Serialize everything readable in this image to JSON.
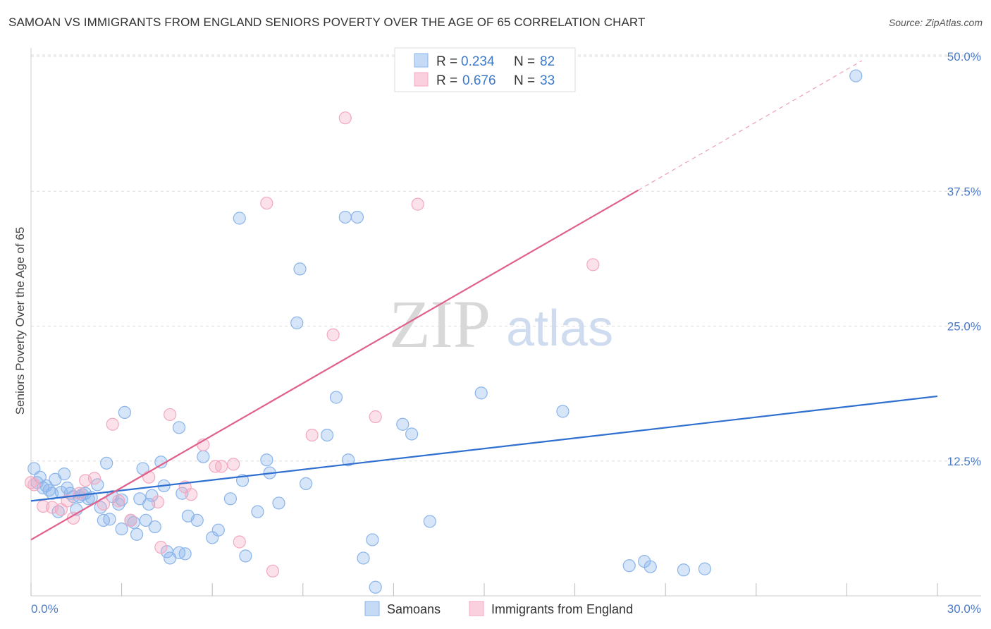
{
  "title": "SAMOAN VS IMMIGRANTS FROM ENGLAND SENIORS POVERTY OVER THE AGE OF 65 CORRELATION CHART",
  "source": "Source: ZipAtlas.com",
  "watermark": {
    "zip": "ZIP",
    "atlas": "atlas"
  },
  "legend": {
    "items": [
      {
        "r_label": "R =",
        "r_value": "0.234",
        "n_label": "N =",
        "n_value": "82"
      },
      {
        "r_label": "R =",
        "r_value": "0.676",
        "n_label": "N =",
        "n_value": "33"
      }
    ]
  },
  "bottom_legend": [
    "Samoans",
    "Immigrants from England"
  ],
  "chart_data": {
    "type": "scatter",
    "title": "SAMOAN VS IMMIGRANTS FROM ENGLAND SENIORS POVERTY OVER THE AGE OF 65 CORRELATION CHART",
    "xlabel": "",
    "ylabel": "Seniors Poverty Over the Age of 65",
    "xlim": [
      0,
      30
    ],
    "ylim": [
      0,
      50
    ],
    "x_tick_labels": [
      "0.0%",
      "30.0%"
    ],
    "y_ticks": [
      12.5,
      25.0,
      37.5,
      50.0
    ],
    "y_tick_labels": [
      "12.5%",
      "25.0%",
      "37.5%",
      "50.0%"
    ],
    "grid": true,
    "legend_position": "top-center",
    "series": [
      {
        "name": "Samoans",
        "color": "#8ab4ea",
        "line_color": "#2e6fd0",
        "trend": {
          "x": [
            0,
            30
          ],
          "y": [
            8.8,
            18.5
          ]
        },
        "points": [
          [
            0.1,
            11.8
          ],
          [
            0.2,
            10.5
          ],
          [
            0.3,
            11.0
          ],
          [
            0.4,
            10.0
          ],
          [
            0.5,
            10.2
          ],
          [
            0.6,
            9.8
          ],
          [
            0.7,
            9.5
          ],
          [
            0.8,
            10.8
          ],
          [
            0.9,
            7.8
          ],
          [
            1.0,
            9.6
          ],
          [
            1.1,
            11.3
          ],
          [
            1.2,
            10.0
          ],
          [
            1.3,
            9.5
          ],
          [
            1.4,
            9.2
          ],
          [
            1.5,
            8.0
          ],
          [
            1.6,
            9.2
          ],
          [
            1.7,
            9.4
          ],
          [
            1.8,
            9.5
          ],
          [
            1.9,
            9.0
          ],
          [
            2.0,
            9.1
          ],
          [
            2.2,
            10.3
          ],
          [
            2.3,
            8.2
          ],
          [
            2.4,
            7.0
          ],
          [
            2.5,
            12.3
          ],
          [
            2.6,
            7.1
          ],
          [
            2.7,
            9.2
          ],
          [
            2.9,
            8.5
          ],
          [
            3.0,
            8.9
          ],
          [
            3.0,
            6.2
          ],
          [
            3.1,
            17.0
          ],
          [
            3.3,
            7.0
          ],
          [
            3.4,
            6.8
          ],
          [
            3.5,
            5.7
          ],
          [
            3.6,
            9.0
          ],
          [
            3.7,
            11.8
          ],
          [
            3.8,
            7.0
          ],
          [
            3.9,
            8.5
          ],
          [
            4.0,
            9.3
          ],
          [
            4.1,
            6.4
          ],
          [
            4.3,
            12.4
          ],
          [
            4.4,
            10.2
          ],
          [
            4.5,
            4.1
          ],
          [
            4.6,
            3.5
          ],
          [
            4.9,
            4.0
          ],
          [
            4.9,
            15.6
          ],
          [
            5.0,
            9.5
          ],
          [
            5.1,
            3.9
          ],
          [
            5.2,
            7.4
          ],
          [
            5.5,
            7.0
          ],
          [
            5.7,
            12.9
          ],
          [
            6.0,
            5.4
          ],
          [
            6.2,
            6.1
          ],
          [
            6.6,
            9.0
          ],
          [
            6.9,
            35.0
          ],
          [
            7.0,
            10.7
          ],
          [
            7.1,
            3.7
          ],
          [
            7.5,
            7.8
          ],
          [
            7.8,
            12.6
          ],
          [
            7.9,
            11.4
          ],
          [
            8.2,
            8.6
          ],
          [
            8.8,
            25.3
          ],
          [
            8.9,
            30.3
          ],
          [
            9.1,
            10.4
          ],
          [
            9.8,
            14.9
          ],
          [
            10.1,
            18.4
          ],
          [
            10.4,
            35.1
          ],
          [
            10.5,
            12.6
          ],
          [
            10.8,
            35.1
          ],
          [
            11.0,
            3.5
          ],
          [
            11.3,
            5.2
          ],
          [
            11.4,
            0.8
          ],
          [
            12.3,
            15.9
          ],
          [
            12.6,
            15.0
          ],
          [
            13.2,
            6.9
          ],
          [
            14.9,
            18.8
          ],
          [
            17.6,
            17.1
          ],
          [
            19.8,
            2.8
          ],
          [
            20.3,
            3.2
          ],
          [
            20.5,
            2.7
          ],
          [
            21.6,
            2.4
          ],
          [
            22.3,
            2.5
          ],
          [
            27.3,
            48.2
          ]
        ]
      },
      {
        "name": "Immigrants from England",
        "color": "#f4a8c0",
        "line_color": "#e0608a",
        "trend": {
          "x": [
            0,
            20.1
          ],
          "y": [
            5.2,
            37.6
          ]
        },
        "trend_extension": {
          "x": [
            20.1,
            27.5
          ],
          "y": [
            37.6,
            49.6
          ]
        },
        "points": [
          [
            0.1,
            10.3
          ],
          [
            0.4,
            8.3
          ],
          [
            0.7,
            8.2
          ],
          [
            1.0,
            8.0
          ],
          [
            1.2,
            8.8
          ],
          [
            1.4,
            7.2
          ],
          [
            1.6,
            9.5
          ],
          [
            1.8,
            10.7
          ],
          [
            2.1,
            10.9
          ],
          [
            2.4,
            8.5
          ],
          [
            2.7,
            15.9
          ],
          [
            2.9,
            8.8
          ],
          [
            3.3,
            7.0
          ],
          [
            3.9,
            11.0
          ],
          [
            4.2,
            8.7
          ],
          [
            4.3,
            4.5
          ],
          [
            4.6,
            16.8
          ],
          [
            5.1,
            10.1
          ],
          [
            5.3,
            9.4
          ],
          [
            5.7,
            14.0
          ],
          [
            6.1,
            12.0
          ],
          [
            6.3,
            12.0
          ],
          [
            6.7,
            12.2
          ],
          [
            6.9,
            5.0
          ],
          [
            7.8,
            36.4
          ],
          [
            8.0,
            2.3
          ],
          [
            9.3,
            14.9
          ],
          [
            10.0,
            24.2
          ],
          [
            10.4,
            44.3
          ],
          [
            11.4,
            16.6
          ],
          [
            12.8,
            36.3
          ],
          [
            18.6,
            30.7
          ],
          [
            0.0,
            10.5
          ]
        ]
      }
    ]
  }
}
